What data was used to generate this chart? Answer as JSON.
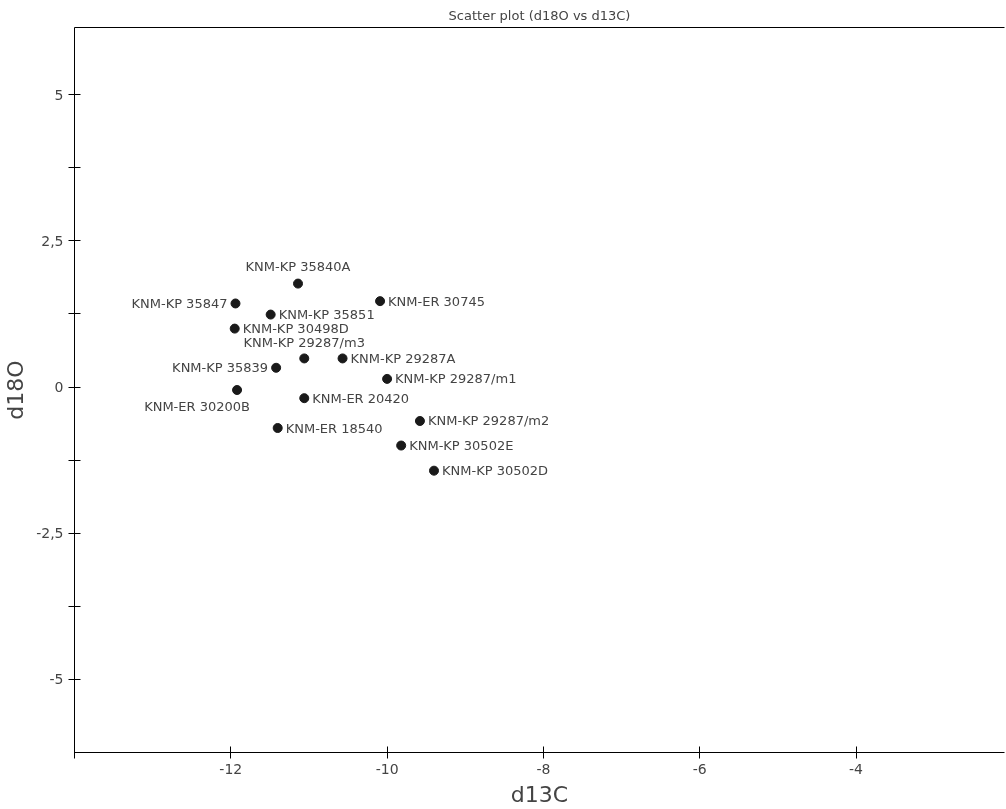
{
  "chart_data": {
    "type": "scatter",
    "title": "Scatter plot (d18O vs d13C)",
    "xlabel": "d13C",
    "ylabel": "d18O",
    "x": [
      -11.14,
      -11.94,
      -11.49,
      -10.09,
      -11.95,
      -11.06,
      -10.57,
      -11.42,
      -10.0,
      -11.92,
      -11.06,
      -9.58,
      -11.4,
      -9.82,
      -9.4
    ],
    "series": [
      {
        "color": "#1a1a1a",
        "values": [
          1.77,
          1.43,
          1.24,
          1.47,
          1.0,
          0.49,
          0.49,
          0.33,
          0.14,
          -0.05,
          -0.19,
          -0.58,
          -0.7,
          -1.0,
          -1.43
        ]
      }
    ],
    "annotations": [
      {
        "text": "KNM-KP 35840A",
        "x": -11.14,
        "y": 1.77
      },
      {
        "text": "KNM-KP 35847",
        "x": -11.94,
        "y": 1.43
      },
      {
        "text": "KNM-KP 35851",
        "x": -11.49,
        "y": 1.24
      },
      {
        "text": "KNM-ER 30745",
        "x": -10.09,
        "y": 1.47
      },
      {
        "text": "KNM-KP 30498D",
        "x": -11.95,
        "y": 1.0
      },
      {
        "text": "KNM-KP 29287/m3",
        "x": -11.06,
        "y": 0.49
      },
      {
        "text": "KNM-KP 29287A",
        "x": -10.57,
        "y": 0.49
      },
      {
        "text": "KNM-KP 35839",
        "x": -11.42,
        "y": 0.33
      },
      {
        "text": "KNM-KP 29287/m1",
        "x": -10.0,
        "y": 0.14
      },
      {
        "text": "KNM-ER 30200B",
        "x": -11.92,
        "y": -0.05
      },
      {
        "text": "KNM-ER 20420",
        "x": -11.06,
        "y": -0.19
      },
      {
        "text": "KNM-KP 29287/m2",
        "x": -9.58,
        "y": -0.58
      },
      {
        "text": "KNM-ER 18540",
        "x": -11.4,
        "y": -0.7
      },
      {
        "text": "KNM-KP 30502E",
        "x": -9.82,
        "y": -1.0
      },
      {
        "text": "KNM-KP 30502D",
        "x": -9.4,
        "y": -1.43
      }
    ],
    "xlim": [
      -14,
      -2.1
    ],
    "ylim": [
      -6.25,
      6.15
    ],
    "xticks": [
      {
        "value": -14,
        "label": null
      },
      -12,
      -10,
      -8,
      -6,
      -4
    ],
    "yticks": [
      {
        "value": -5,
        "label": "-5"
      },
      {
        "value": -3.75,
        "label": null
      },
      {
        "value": -2.5,
        "label": "-2,5"
      },
      {
        "value": -1.25,
        "label": null
      },
      0,
      {
        "value": 1.25,
        "label": null
      },
      {
        "value": 2.5,
        "label": "2,5"
      },
      {
        "value": 3.75,
        "label": null
      },
      5
    ],
    "marker": "circle",
    "grid": false
  }
}
